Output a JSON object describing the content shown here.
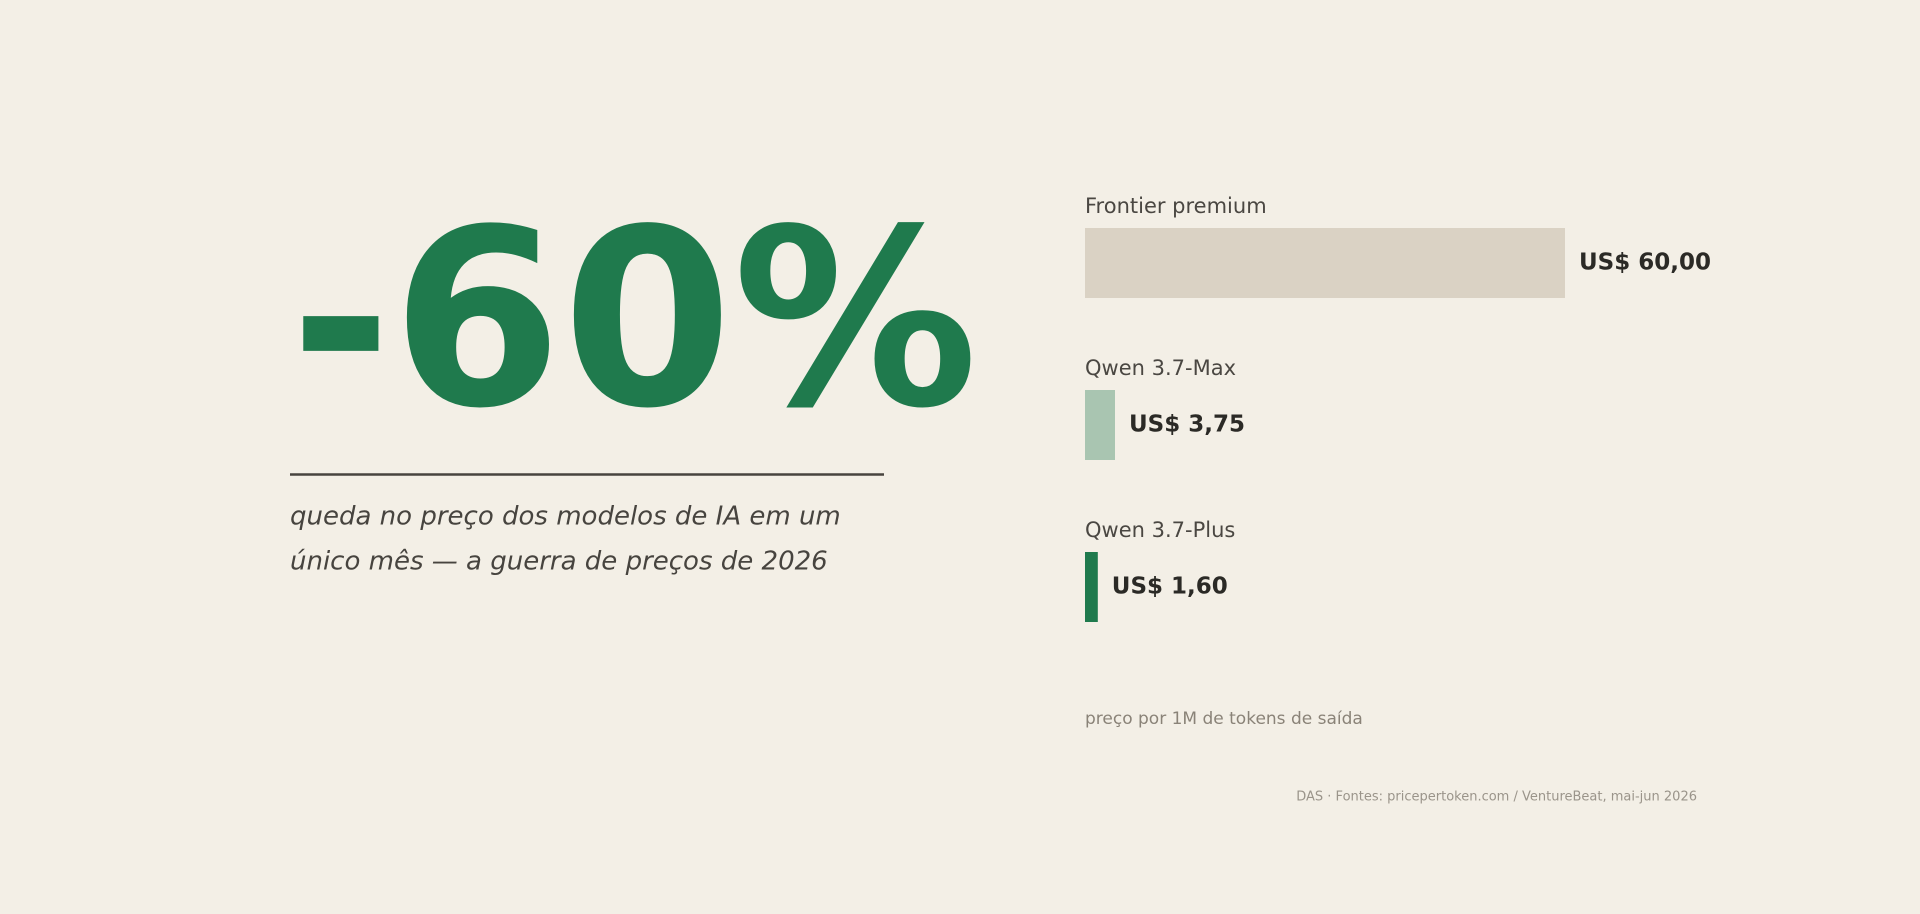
{
  "headline": "-60%",
  "subtitle": [
    "queda no preço dos modelos de IA em um",
    "único mês — a guerra de preços de 2026"
  ],
  "chart_data": {
    "type": "bar",
    "orientation": "horizontal",
    "categories": [
      "Frontier premium",
      "Qwen 3.7-Max",
      "Qwen 3.7-Plus"
    ],
    "values": [
      60,
      3.75,
      1.6
    ],
    "value_labels": [
      "US$ 60,00",
      "US$ 3,75",
      "US$ 1,60"
    ],
    "colors": [
      "#dad2c4",
      "#a9c5b1",
      "#1f7a4d"
    ],
    "note": "preço por 1M de tokens de saída"
  },
  "source": "DAS · Fontes: pricepertoken.com / VentureBeat, mai-jun 2026"
}
